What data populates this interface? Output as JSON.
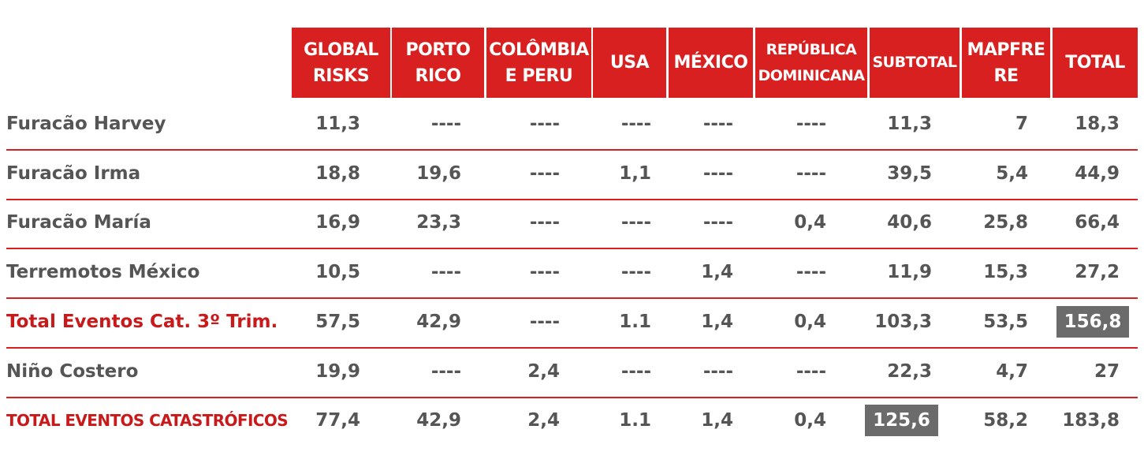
{
  "table": {
    "header": [
      "GLOBAL\nRISKS",
      "PORTO\nRICO",
      "COLÔMBIA\nE PERU",
      "USA",
      "MÉXICO",
      "REPÚBLICA\nDOMINICANA",
      "SUBTOTAL",
      "MAPFRE\nRE",
      "TOTAL"
    ],
    "rows": [
      [
        "Furacão Harvey",
        "11,3",
        "----",
        "----",
        "----",
        "----",
        "----",
        "11,3",
        "7",
        "18,3"
      ],
      [
        "Furacão Irma",
        "18,8",
        "19,6",
        "----",
        "1,1",
        "----",
        "----",
        "39,5",
        "5,4",
        "44,9"
      ],
      [
        "Furacão María",
        "16,9",
        "23,3",
        "----",
        "----",
        "----",
        "0,4",
        "40,6",
        "25,8",
        "66,4"
      ],
      [
        "Terremotos México",
        "10,5",
        "----",
        "----",
        "----",
        "1,4",
        "----",
        "11,9",
        "15,3",
        "27,2"
      ],
      [
        "Total Eventos Cat. 3º Trim.",
        "57,5",
        "42,9",
        "----",
        "1.1",
        "1,4",
        "0,4",
        "103,3",
        "53,5",
        "156,8"
      ],
      [
        "Niño Costero",
        "19,9",
        "----",
        "2,4",
        "----",
        "----",
        "----",
        "22,3",
        "4,7",
        "27"
      ],
      [
        "TOTAL EVENTOS CATASTRÓFICOS",
        "77,4",
        "42,9",
        "2,4",
        "1.1",
        "1,4",
        "0,4",
        "125,6",
        "58,2",
        "183,8"
      ]
    ]
  }
}
